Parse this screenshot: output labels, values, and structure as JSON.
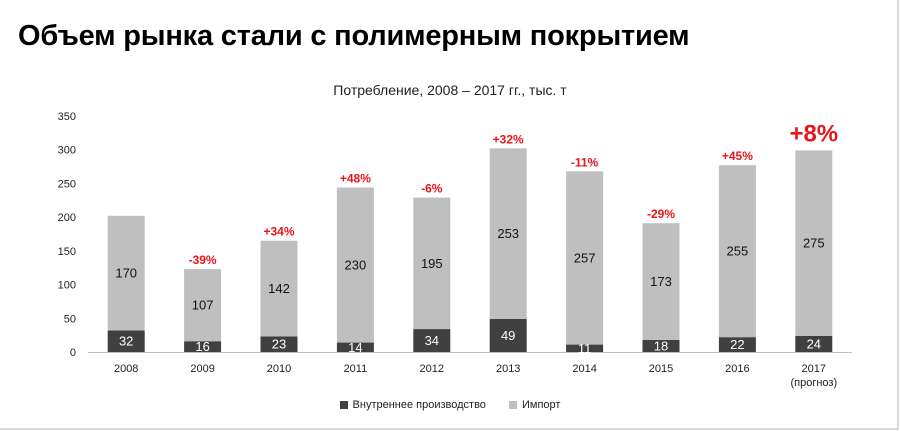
{
  "page_title": "Объем рынка стали с полимерным покрытием",
  "chart_data": {
    "type": "bar",
    "stacked": true,
    "title": "Потребление, 2008 – 2017 гг., тыс. т",
    "categories": [
      "2008",
      "2009",
      "2010",
      "2011",
      "2012",
      "2013",
      "2014",
      "2015",
      "2016",
      "2017"
    ],
    "category_sublabels": [
      "",
      "",
      "",
      "",
      "",
      "",
      "",
      "",
      "",
      "(прогноз)"
    ],
    "series": [
      {
        "name": "Внутреннее производство",
        "color": "#404040",
        "values": [
          32,
          16,
          23,
          14,
          34,
          49,
          11,
          18,
          22,
          24
        ]
      },
      {
        "name": "Импорт",
        "color": "#bfbfbf",
        "values": [
          170,
          107,
          142,
          230,
          195,
          253,
          257,
          173,
          255,
          275
        ]
      }
    ],
    "growth_labels": [
      "",
      "-39%",
      "+34%",
      "+48%",
      "-6%",
      "+32%",
      "-11%",
      "-29%",
      "+45%",
      "+8%"
    ],
    "growth_color": "#e8151b",
    "ylim": [
      0,
      350
    ],
    "yticks": [
      0,
      50,
      100,
      150,
      200,
      250,
      300,
      350
    ],
    "grid": false,
    "legend_position": "bottom"
  }
}
